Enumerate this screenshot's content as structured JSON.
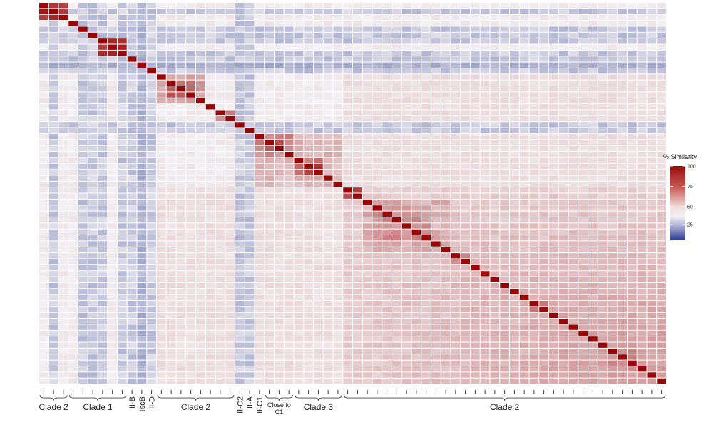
{
  "chart_data": {
    "type": "heatmap",
    "n": 64,
    "value_range": [
      0,
      100
    ],
    "legend": {
      "title": "% Similarity",
      "ticks": [
        100,
        75,
        50,
        25
      ],
      "placement": "right"
    },
    "colors": {
      "low": "#2b3a8f",
      "mid": "#f3f0f3",
      "high": "#980808"
    },
    "groups": [
      {
        "label": "Clade 2",
        "start": 0,
        "end": 3,
        "bracket": true
      },
      {
        "label": "Clade 1",
        "start": 3,
        "end": 9,
        "bracket": true
      },
      {
        "label": "II-B",
        "start": 9,
        "end": 10,
        "bracket": false,
        "vertical": true
      },
      {
        "label": "IscB",
        "start": 10,
        "end": 11,
        "bracket": false,
        "vertical": true
      },
      {
        "label": "II-D",
        "start": 11,
        "end": 12,
        "bracket": false,
        "vertical": true
      },
      {
        "label": "Clade 2",
        "start": 12,
        "end": 20,
        "bracket": true
      },
      {
        "label": "II-C2",
        "start": 20,
        "end": 21,
        "bracket": false,
        "vertical": true
      },
      {
        "label": "II-A",
        "start": 21,
        "end": 22,
        "bracket": false,
        "vertical": true
      },
      {
        "label": "II-C1",
        "start": 22,
        "end": 23,
        "bracket": false,
        "vertical": true
      },
      {
        "label": "Close to C1",
        "line1": "Close to",
        "line2": "C1",
        "start": 23,
        "end": 26,
        "bracket": true,
        "small": true
      },
      {
        "label": "Clade 3",
        "start": 26,
        "end": 31,
        "bracket": true
      },
      {
        "label": "Clade 2",
        "start": 31,
        "end": 64,
        "bracket": true
      }
    ],
    "blocks": [
      {
        "start": 0,
        "end": 3,
        "value": 92
      },
      {
        "start": 4,
        "end": 5,
        "value": 80
      },
      {
        "start": 6,
        "end": 9,
        "value": 90
      },
      {
        "start": 12,
        "end": 17,
        "value": 62
      },
      {
        "start": 13,
        "end": 16,
        "value": 78
      },
      {
        "start": 18,
        "end": 20,
        "value": 70
      },
      {
        "start": 22,
        "end": 31,
        "value": 56
      },
      {
        "start": 22,
        "end": 26,
        "value": 68
      },
      {
        "start": 23,
        "end": 25,
        "value": 82
      },
      {
        "start": 26,
        "end": 29,
        "value": 74
      },
      {
        "start": 27,
        "end": 29,
        "value": 90
      },
      {
        "start": 31,
        "end": 33,
        "value": 86
      },
      {
        "start": 33,
        "end": 42,
        "value": 58
      },
      {
        "start": 34,
        "end": 40,
        "value": 66
      },
      {
        "start": 42,
        "end": 44,
        "value": 72
      },
      {
        "start": 50,
        "end": 52,
        "value": 72
      },
      {
        "start": 58,
        "end": 61,
        "value": 66
      }
    ],
    "low_rows": [
      1,
      4,
      5,
      6,
      8,
      9,
      10,
      11,
      20,
      21
    ],
    "diagonal_value": 100
  }
}
